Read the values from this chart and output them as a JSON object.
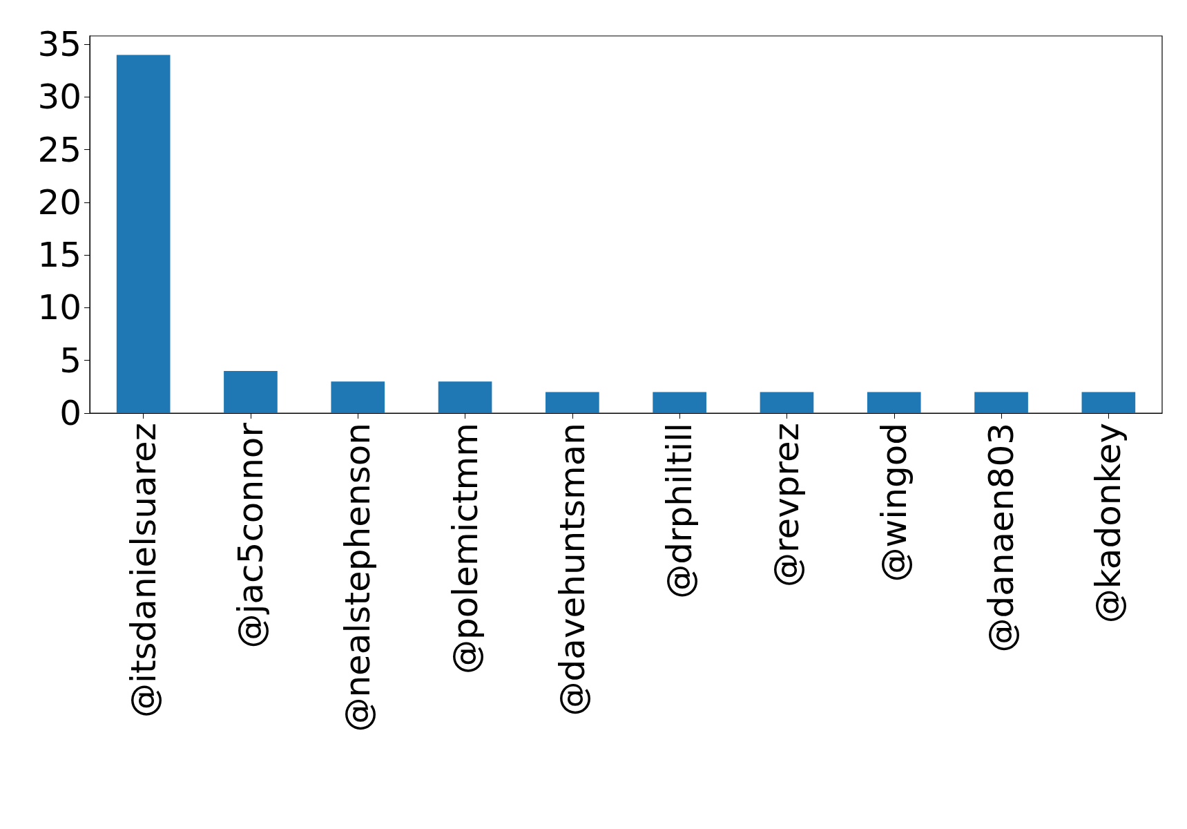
{
  "chart_data": {
    "type": "bar",
    "categories": [
      "@itsdanielsuarez",
      "@jac5connor",
      "@nealstephenson",
      "@polemictmm",
      "@davehuntsman",
      "@drphiltill",
      "@revprez",
      "@wingod",
      "@danaen803",
      "@kadonkey"
    ],
    "values": [
      34,
      4,
      3,
      3,
      2,
      2,
      2,
      2,
      2,
      2
    ],
    "color": "#1f77b4",
    "ylim": [
      0,
      35.8
    ],
    "yticks": [
      0,
      5,
      10,
      15,
      20,
      25,
      30,
      35
    ]
  }
}
